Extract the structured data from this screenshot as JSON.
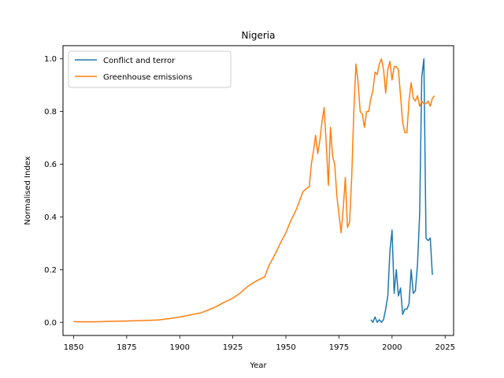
{
  "chart_data": {
    "type": "line",
    "title": "Nigeria",
    "xlabel": "Year",
    "ylabel": "Normalised Index",
    "xlim": [
      1845,
      2029
    ],
    "ylim": [
      -0.05,
      1.05
    ],
    "xticks": [
      1850,
      1875,
      1900,
      1925,
      1950,
      1975,
      2000,
      2025
    ],
    "yticks": [
      0.0,
      0.2,
      0.4,
      0.6,
      0.8,
      1.0
    ],
    "ytick_labels": [
      "0.0",
      "0.2",
      "0.4",
      "0.6",
      "0.8",
      "1.0"
    ],
    "grid": false,
    "legend": "top-left",
    "series": [
      {
        "name": "Conflict and terror",
        "color": "#1f77b4",
        "x": [
          1990,
          1991,
          1992,
          1993,
          1994,
          1995,
          1996,
          1997,
          1998,
          1999,
          2000,
          2001,
          2002,
          2003,
          2004,
          2005,
          2006,
          2007,
          2008,
          2009,
          2010,
          2011,
          2012,
          2013,
          2014,
          2015,
          2016,
          2017,
          2018,
          2019
        ],
        "y": [
          0.01,
          0.0,
          0.02,
          0.0,
          0.01,
          0.0,
          0.01,
          0.05,
          0.1,
          0.27,
          0.35,
          0.11,
          0.2,
          0.1,
          0.13,
          0.03,
          0.05,
          0.05,
          0.07,
          0.2,
          0.11,
          0.12,
          0.22,
          0.41,
          0.93,
          1.0,
          0.32,
          0.31,
          0.32,
          0.18
        ]
      },
      {
        "name": "Greenhouse emissions",
        "color": "#ff7f0e",
        "x": [
          1850,
          1852,
          1855,
          1860,
          1865,
          1870,
          1875,
          1880,
          1885,
          1890,
          1895,
          1900,
          1905,
          1910,
          1912,
          1915,
          1918,
          1920,
          1925,
          1928,
          1930,
          1932,
          1935,
          1938,
          1940,
          1942,
          1945,
          1948,
          1950,
          1952,
          1955,
          1958,
          1960,
          1961,
          1962,
          1963,
          1964,
          1965,
          1966,
          1967,
          1968,
          1969,
          1970,
          1971,
          1972,
          1973,
          1974,
          1975,
          1976,
          1977,
          1978,
          1979,
          1980,
          1981,
          1982,
          1983,
          1984,
          1985,
          1986,
          1987,
          1988,
          1989,
          1990,
          1991,
          1992,
          1993,
          1994,
          1995,
          1996,
          1997,
          1998,
          1999,
          2000,
          2001,
          2002,
          2003,
          2004,
          2005,
          2006,
          2007,
          2008,
          2009,
          2010,
          2011,
          2012,
          2013,
          2014,
          2015,
          2016,
          2017,
          2018,
          2019,
          2020
        ],
        "y": [
          0.003,
          0.002,
          0.002,
          0.002,
          0.003,
          0.004,
          0.005,
          0.006,
          0.007,
          0.009,
          0.014,
          0.02,
          0.028,
          0.036,
          0.042,
          0.052,
          0.063,
          0.072,
          0.092,
          0.108,
          0.122,
          0.136,
          0.152,
          0.165,
          0.172,
          0.215,
          0.26,
          0.31,
          0.34,
          0.38,
          0.43,
          0.495,
          0.51,
          0.515,
          0.6,
          0.65,
          0.71,
          0.64,
          0.69,
          0.76,
          0.815,
          0.68,
          0.52,
          0.74,
          0.63,
          0.6,
          0.48,
          0.41,
          0.34,
          0.43,
          0.55,
          0.36,
          0.38,
          0.55,
          0.8,
          0.98,
          0.91,
          0.8,
          0.79,
          0.74,
          0.8,
          0.8,
          0.85,
          0.88,
          0.95,
          0.94,
          0.98,
          1.0,
          0.96,
          0.87,
          0.96,
          0.99,
          0.92,
          0.97,
          0.97,
          0.96,
          0.86,
          0.76,
          0.72,
          0.72,
          0.84,
          0.91,
          0.85,
          0.84,
          0.86,
          0.82,
          0.84,
          0.83,
          0.83,
          0.84,
          0.82,
          0.85,
          0.86
        ]
      }
    ]
  }
}
